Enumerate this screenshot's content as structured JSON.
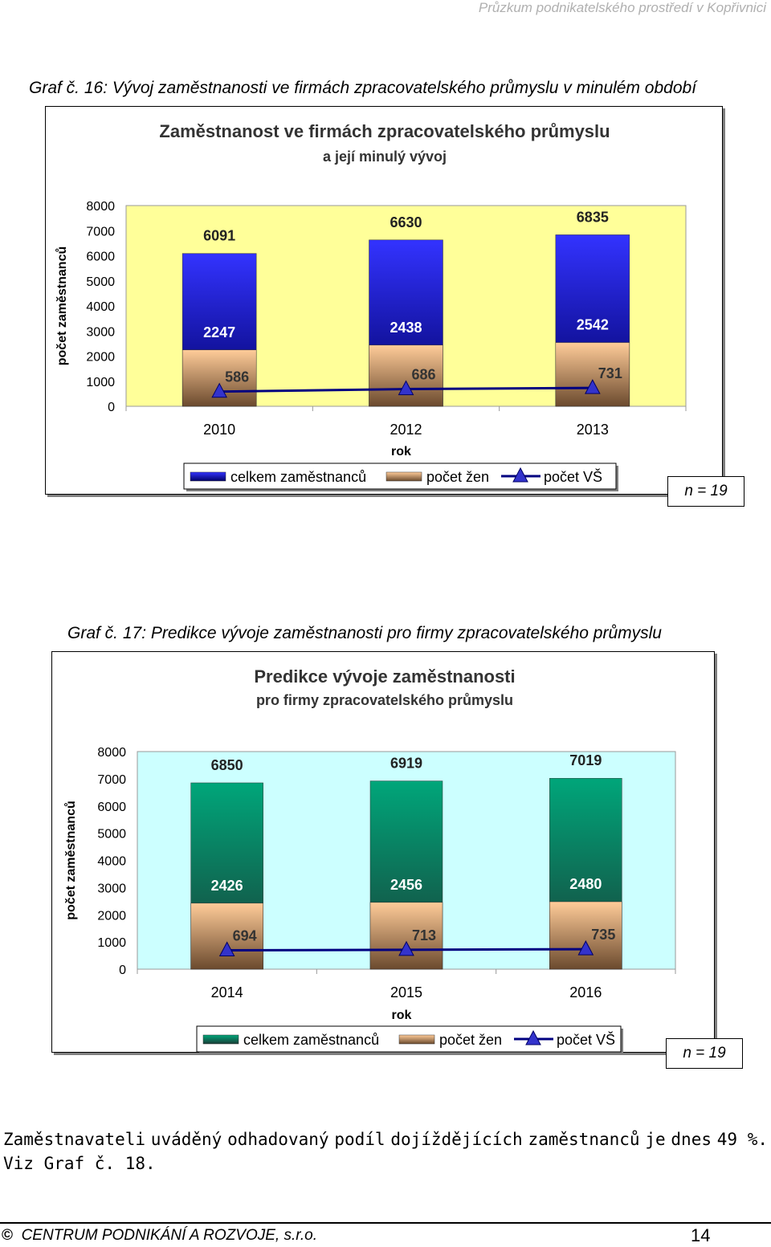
{
  "header": {
    "running_title": "Průzkum podnikatelského prostředí v Kopřivnici"
  },
  "graf16": {
    "caption": "Graf č. 16: Vývoj zaměstnanosti ve firmách zpracovatelského průmyslu v minulém období",
    "n_label": "n = 19",
    "chart_data": {
      "type": "bar",
      "title": "Zaměstnanost ve firmách zpracovatelského průmyslu",
      "subtitle": "a její minulý vývoj",
      "xlabel": "rok",
      "ylabel": "počet zaměstnanců",
      "ylim": [
        0,
        8000
      ],
      "yticks": [
        0,
        1000,
        2000,
        3000,
        4000,
        5000,
        6000,
        7000,
        8000
      ],
      "categories": [
        "2010",
        "2012",
        "2013"
      ],
      "series": [
        {
          "name": "celkem zaměstnanců",
          "kind": "bar",
          "values": [
            6091,
            6630,
            6835
          ]
        },
        {
          "name": "počet žen",
          "kind": "bar",
          "values": [
            2247,
            2438,
            2542
          ]
        },
        {
          "name": "počet VŠ",
          "kind": "line",
          "values": [
            586,
            686,
            731
          ]
        }
      ],
      "legend": "bottom",
      "colors": {
        "plot_bg": "#FFFF99",
        "bar1_top": "#3333FF",
        "bar1_bottom": "#000066",
        "bar2_top": "#FFCC99",
        "bar2_bottom": "#6B4A2E",
        "line": "#000080",
        "marker": "#3333CC"
      }
    }
  },
  "graf17": {
    "caption": "Graf č. 17: Predikce vývoje zaměstnanosti pro firmy zpracovatelského průmyslu",
    "n_label": "n = 19",
    "chart_data": {
      "type": "bar",
      "title": "Predikce vývoje zaměstnanosti",
      "subtitle": "pro firmy zpracovatelského průmyslu",
      "xlabel": "rok",
      "ylabel": "počet zaměstnanců",
      "ylim": [
        0,
        8000
      ],
      "yticks": [
        0,
        1000,
        2000,
        3000,
        4000,
        5000,
        6000,
        7000,
        8000
      ],
      "categories": [
        "2014",
        "2015",
        "2016"
      ],
      "series": [
        {
          "name": "celkem zaměstnanců",
          "kind": "bar",
          "values": [
            6850,
            6919,
            7019
          ]
        },
        {
          "name": "počet žen",
          "kind": "bar",
          "values": [
            2426,
            2456,
            2480
          ]
        },
        {
          "name": "počet VŠ",
          "kind": "line",
          "values": [
            694,
            713,
            735
          ]
        }
      ],
      "legend": "bottom",
      "colors": {
        "plot_bg": "#CCFFFF",
        "bar1_top": "#00A67A",
        "bar1_bottom": "#1A3D36",
        "bar2_top": "#FFCC99",
        "bar2_bottom": "#6B4A2E",
        "line": "#000080",
        "marker": "#3333CC"
      }
    }
  },
  "body": {
    "line1": [
      "Zaměstnavateli",
      "uváděný",
      "odhadovaný",
      "podíl",
      "dojíždějících",
      "zaměstnanců",
      "je",
      "dnes",
      "49 %."
    ],
    "line2": "Viz Graf č. 18."
  },
  "footer": {
    "copyright_symbol": "©",
    "company": "CENTRUM PODNIKÁNÍ A ROZVOJE, s.r.o.",
    "page_number": "14"
  }
}
